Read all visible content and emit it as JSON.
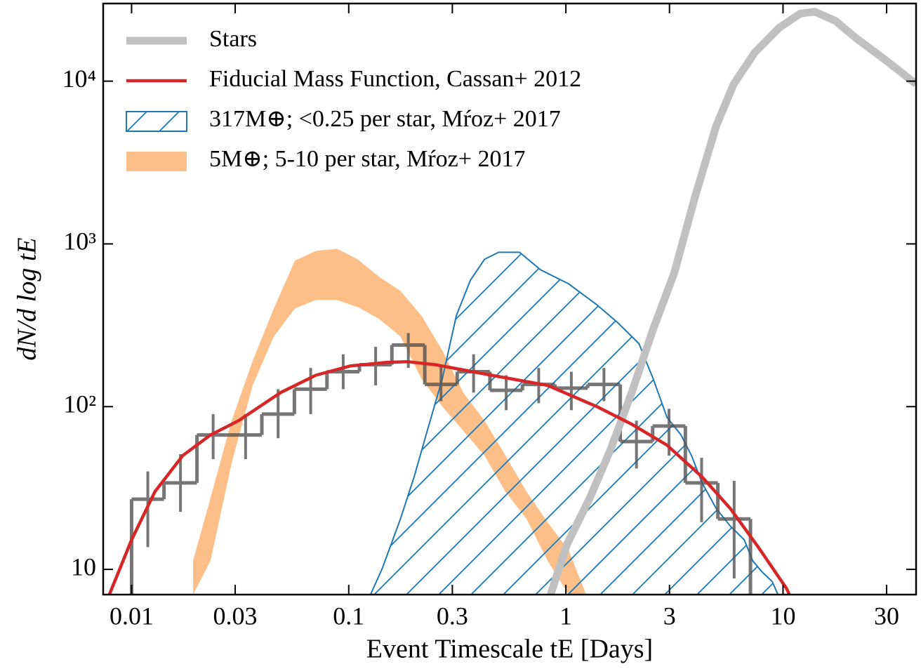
{
  "chart_data": {
    "type": "line",
    "xlabel": "Event Timescale tE [Days]",
    "ylabel": "dN/d log tE",
    "xscale": "log",
    "yscale": "log",
    "xlim": [
      0.0074,
      41
    ],
    "ylim": [
      7,
      30000
    ],
    "xticks": [
      0.01,
      0.03,
      0.1,
      0.3,
      1,
      3,
      10,
      30
    ],
    "yticks": [
      10,
      {
        "value": 100,
        "label": "10²"
      },
      {
        "value": 1000,
        "label": "10³"
      },
      {
        "value": 10000,
        "label": "10⁴"
      }
    ],
    "legend": "upper left",
    "series": [
      {
        "name": "Stars",
        "style": "line",
        "color": "#c0c0c0",
        "width": 11,
        "x": [
          0.85,
          1.015,
          1.29,
          1.61,
          2.01,
          2.52,
          3.15,
          3.94,
          4.92,
          5.93,
          7.41,
          9.6,
          12.0,
          14.0,
          17.4,
          21.8,
          29.4,
          41
        ],
        "values": [
          7,
          14.4,
          27.5,
          55,
          122,
          298,
          659,
          1960,
          5300,
          9600,
          15000,
          21300,
          26000,
          26700,
          23500,
          18300,
          13600,
          9600
        ]
      },
      {
        "name": "Fiducial Mass Function, Cassan+ 2012",
        "style": "line",
        "color": "#d62728",
        "width": 4.5,
        "x": [
          0.0079,
          0.01,
          0.0128,
          0.0172,
          0.0231,
          0.0311,
          0.0486,
          0.0706,
          0.102,
          0.149,
          0.186,
          0.25,
          0.454,
          0.824,
          1.39,
          2.01,
          2.92,
          4.24,
          5.71,
          7.69,
          10.4,
          10.7
        ],
        "values": [
          7,
          15.2,
          30,
          50,
          67,
          82,
          122,
          156,
          178,
          187,
          189,
          181,
          156,
          135,
          100,
          78,
          58,
          37,
          23.7,
          13.7,
          7.6,
          7
        ]
      },
      {
        "name": "317M⊕; <0.25 per star, Mŕoz+ 2017",
        "style": "hatch",
        "color": "#1f77b4",
        "x": [
          0.126,
          0.143,
          0.173,
          0.2,
          0.232,
          0.27,
          0.313,
          0.363,
          0.422,
          0.49,
          0.612,
          0.765,
          1.03,
          1.39,
          1.73,
          2.17,
          2.52,
          2.92,
          3.39,
          3.79,
          4.24,
          4.92,
          5.71,
          6.63,
          7.25,
          7.98,
          8.93,
          9.47
        ],
        "values": [
          7,
          10.2,
          20.4,
          37,
          74,
          149,
          363,
          597,
          804,
          888,
          888,
          693,
          568,
          422,
          329,
          244,
          149,
          86,
          67,
          50,
          34,
          23.7,
          18.5,
          15.2,
          11.3,
          9.7,
          8.4,
          7
        ]
      },
      {
        "name": "5M⊕; 5-10 per star, Mŕoz+ 2017",
        "style": "band",
        "color": "#fdbf87",
        "x": [
          0.0192,
          0.0231,
          0.0289,
          0.0361,
          0.0452,
          0.0565,
          0.0706,
          0.0883,
          0.11,
          0.138,
          0.173,
          0.216,
          0.27,
          0.337,
          0.422,
          0.527,
          0.659,
          0.824,
          1.03,
          1.24
        ],
        "lower": [
          7,
          11.3,
          45,
          135,
          270,
          401,
          452,
          452,
          409,
          346,
          270,
          149,
          100,
          71,
          50,
          30,
          20.4,
          11.3,
          7,
          7
        ],
        "upper": [
          11.3,
          27.5,
          82,
          191,
          401,
          789,
          906,
          933,
          804,
          627,
          514,
          363,
          221,
          122,
          82,
          50,
          30,
          19.5,
          13.1,
          7
        ]
      },
      {
        "style": "step",
        "color": "#555555",
        "bins": [
          0.01,
          0.0141,
          0.02,
          0.0282,
          0.0398,
          0.0562,
          0.0794,
          0.112,
          0.158,
          0.224,
          0.316,
          0.447,
          0.631,
          0.891,
          1.26,
          1.78,
          2.51,
          3.55,
          5.01,
          7.08
        ],
        "values": [
          27,
          34,
          67,
          67,
          90,
          128,
          164,
          181,
          239,
          137,
          164,
          126,
          137,
          130,
          137,
          61,
          76,
          34,
          20.4
        ],
        "lower": [
          13.7,
          22.6,
          47.6,
          47.6,
          64,
          90,
          128,
          135,
          173,
          108,
          122,
          95,
          105,
          95,
          108,
          41.7,
          50,
          19.5,
          8.8
        ],
        "upper": [
          40,
          51,
          90,
          90,
          128,
          173,
          210,
          233,
          283,
          181,
          210,
          156,
          173,
          164,
          173,
          82,
          97,
          48.5,
          35
        ]
      }
    ]
  }
}
